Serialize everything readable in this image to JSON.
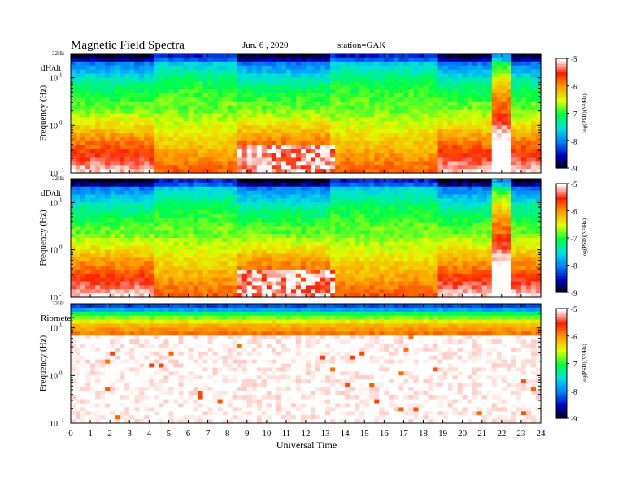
{
  "header": {
    "title": "Magnetic  Field  Spectra",
    "date": "Jun.  6  ,  2020",
    "station": "station=GAK"
  },
  "chart_data": [
    {
      "type": "heatmap",
      "panel_label": "dH/dt",
      "ylabel": "Frequency  (Hz)",
      "top_label": "32Hz",
      "yticks": [
        "10",
        "10",
        "10"
      ],
      "yexps": [
        "-1",
        "0",
        "1"
      ],
      "ylog": true,
      "yrange_hz": [
        0.1,
        32
      ],
      "xrange_ut": [
        0,
        24
      ],
      "colorbar": {
        "label": "log(PSD)(V²/Hz)",
        "ticks": [
          "-5",
          "-6",
          "-7",
          "-8",
          "-9"
        ],
        "range": [
          -9,
          -5
        ]
      },
      "profile": "mag_h"
    },
    {
      "type": "heatmap",
      "panel_label": "dD/dt",
      "ylabel": "Frequency  (Hz)",
      "top_label": "32Hz",
      "yticks": [
        "10",
        "10",
        "10"
      ],
      "yexps": [
        "-1",
        "0",
        "1"
      ],
      "ylog": true,
      "yrange_hz": [
        0.1,
        32
      ],
      "xrange_ut": [
        0,
        24
      ],
      "colorbar": {
        "label": "log(PSD)(V²/Hz)",
        "ticks": [
          "-5",
          "-6",
          "-7",
          "-8",
          "-9"
        ],
        "range": [
          -9,
          -5
        ]
      },
      "profile": "mag_d"
    },
    {
      "type": "heatmap",
      "panel_label": "Riometer",
      "ylabel": "Frequency  (Hz)",
      "top_label": "32Hz",
      "yticks": [
        "10",
        "10",
        "10"
      ],
      "yexps": [
        "-1",
        "0",
        "1"
      ],
      "ylog": true,
      "yrange_hz": [
        0.1,
        32
      ],
      "xrange_ut": [
        0,
        24
      ],
      "colorbar": {
        "label": "log(PSD)(V²/Hz)",
        "ticks": [
          "-5",
          "-6",
          "-7",
          "-8",
          "-9"
        ],
        "range": [
          -9,
          -5
        ]
      },
      "profile": "rio"
    }
  ],
  "xaxis": {
    "label": "Universal  Time",
    "ticks": [
      "0",
      "1",
      "2",
      "3",
      "4",
      "5",
      "6",
      "7",
      "8",
      "9",
      "10",
      "11",
      "12",
      "13",
      "14",
      "15",
      "16",
      "17",
      "18",
      "19",
      "20",
      "21",
      "22",
      "23",
      "24"
    ]
  },
  "colors": {
    "colormap": [
      "#000000",
      "#0000c0",
      "#0080ff",
      "#00e0e0",
      "#00ff40",
      "#e0ff00",
      "#ffa000",
      "#ff2000",
      "#ffffff"
    ]
  }
}
